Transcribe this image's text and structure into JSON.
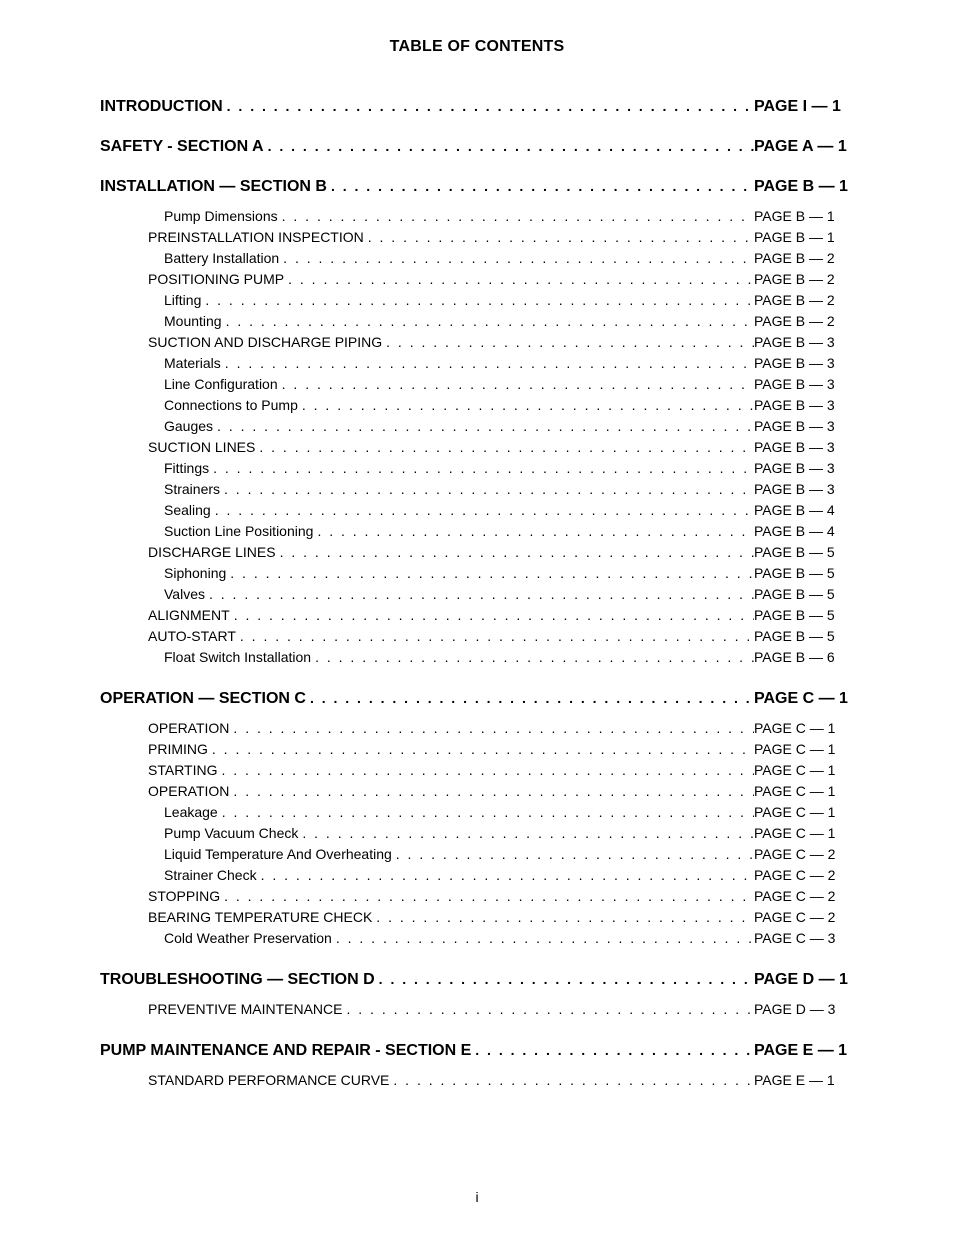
{
  "title": "TABLE OF CONTENTS",
  "page_number": "i",
  "colors": {
    "background": "#ffffff",
    "text": "#000000"
  },
  "fonts": {
    "title_size_pt": 16,
    "section_size_pt": 16,
    "sub_size_pt": 14
  },
  "sections": [
    {
      "label": "INTRODUCTION",
      "page": "PAGE I — 1",
      "items": []
    },
    {
      "label": "SAFETY - SECTION A",
      "page": "PAGE A — 1",
      "items": []
    },
    {
      "label": "INSTALLATION — SECTION B",
      "page": "PAGE B — 1",
      "items": [
        {
          "label": "Pump Dimensions",
          "page": "PAGE B — 1",
          "indent": 2
        },
        {
          "label": "PREINSTALLATION INSPECTION",
          "page": "PAGE B — 1",
          "indent": 1
        },
        {
          "label": "Battery Installation",
          "page": "PAGE B — 2",
          "indent": 2
        },
        {
          "label": "POSITIONING PUMP",
          "page": "PAGE B — 2",
          "indent": 1
        },
        {
          "label": "Lifting",
          "page": "PAGE B — 2",
          "indent": 2
        },
        {
          "label": "Mounting",
          "page": "PAGE B — 2",
          "indent": 2
        },
        {
          "label": "SUCTION AND DISCHARGE PIPING",
          "page": "PAGE B — 3",
          "indent": 1
        },
        {
          "label": "Materials",
          "page": "PAGE B — 3",
          "indent": 2
        },
        {
          "label": "Line Configuration",
          "page": "PAGE B — 3",
          "indent": 2
        },
        {
          "label": "Connections to Pump",
          "page": "PAGE B — 3",
          "indent": 2
        },
        {
          "label": "Gauges",
          "page": "PAGE B — 3",
          "indent": 2
        },
        {
          "label": "SUCTION LINES",
          "page": "PAGE B — 3",
          "indent": 1
        },
        {
          "label": "Fittings",
          "page": "PAGE B — 3",
          "indent": 2
        },
        {
          "label": "Strainers",
          "page": "PAGE B — 3",
          "indent": 2
        },
        {
          "label": "Sealing",
          "page": "PAGE B — 4",
          "indent": 2
        },
        {
          "label": "Suction Line Positioning",
          "page": "PAGE B — 4",
          "indent": 2
        },
        {
          "label": "DISCHARGE LINES",
          "page": "PAGE B — 5",
          "indent": 1
        },
        {
          "label": "Siphoning",
          "page": "PAGE B — 5",
          "indent": 2
        },
        {
          "label": "Valves",
          "page": "PAGE B — 5",
          "indent": 2
        },
        {
          "label": "ALIGNMENT",
          "page": "PAGE B — 5",
          "indent": 1
        },
        {
          "label": "AUTO-START",
          "page": "PAGE B — 5",
          "indent": 1
        },
        {
          "label": "Float Switch Installation",
          "page": "PAGE B — 6",
          "indent": 2
        }
      ]
    },
    {
      "label": "OPERATION — SECTION C",
      "page": "PAGE C — 1",
      "items": [
        {
          "label": "OPERATION",
          "page": "PAGE C — 1",
          "indent": 1
        },
        {
          "label": "PRIMING",
          "page": "PAGE C — 1",
          "indent": 1
        },
        {
          "label": "STARTING",
          "page": "PAGE C — 1",
          "indent": 1
        },
        {
          "label": "OPERATION",
          "page": "PAGE C — 1",
          "indent": 1
        },
        {
          "label": "Leakage",
          "page": "PAGE C — 1",
          "indent": 2
        },
        {
          "label": "Pump Vacuum Check",
          "page": "PAGE C — 1",
          "indent": 2
        },
        {
          "label": "Liquid Temperature And Overheating",
          "page": "PAGE C — 2",
          "indent": 2
        },
        {
          "label": "Strainer Check",
          "page": "PAGE C — 2",
          "indent": 2
        },
        {
          "label": "STOPPING",
          "page": "PAGE C — 2",
          "indent": 1
        },
        {
          "label": "BEARING TEMPERATURE CHECK",
          "page": "PAGE C — 2",
          "indent": 1
        },
        {
          "label": "Cold Weather Preservation",
          "page": "PAGE C — 3",
          "indent": 2
        }
      ]
    },
    {
      "label": "TROUBLESHOOTING — SECTION D",
      "page": "PAGE D — 1",
      "items": [
        {
          "label": "PREVENTIVE MAINTENANCE",
          "page": "PAGE D — 3",
          "indent": 1
        }
      ]
    },
    {
      "label": "PUMP MAINTENANCE AND REPAIR - SECTION E",
      "page": "PAGE E — 1",
      "items": [
        {
          "label": "STANDARD PERFORMANCE CURVE",
          "page": "PAGE E — 1",
          "indent": 1
        }
      ]
    }
  ]
}
